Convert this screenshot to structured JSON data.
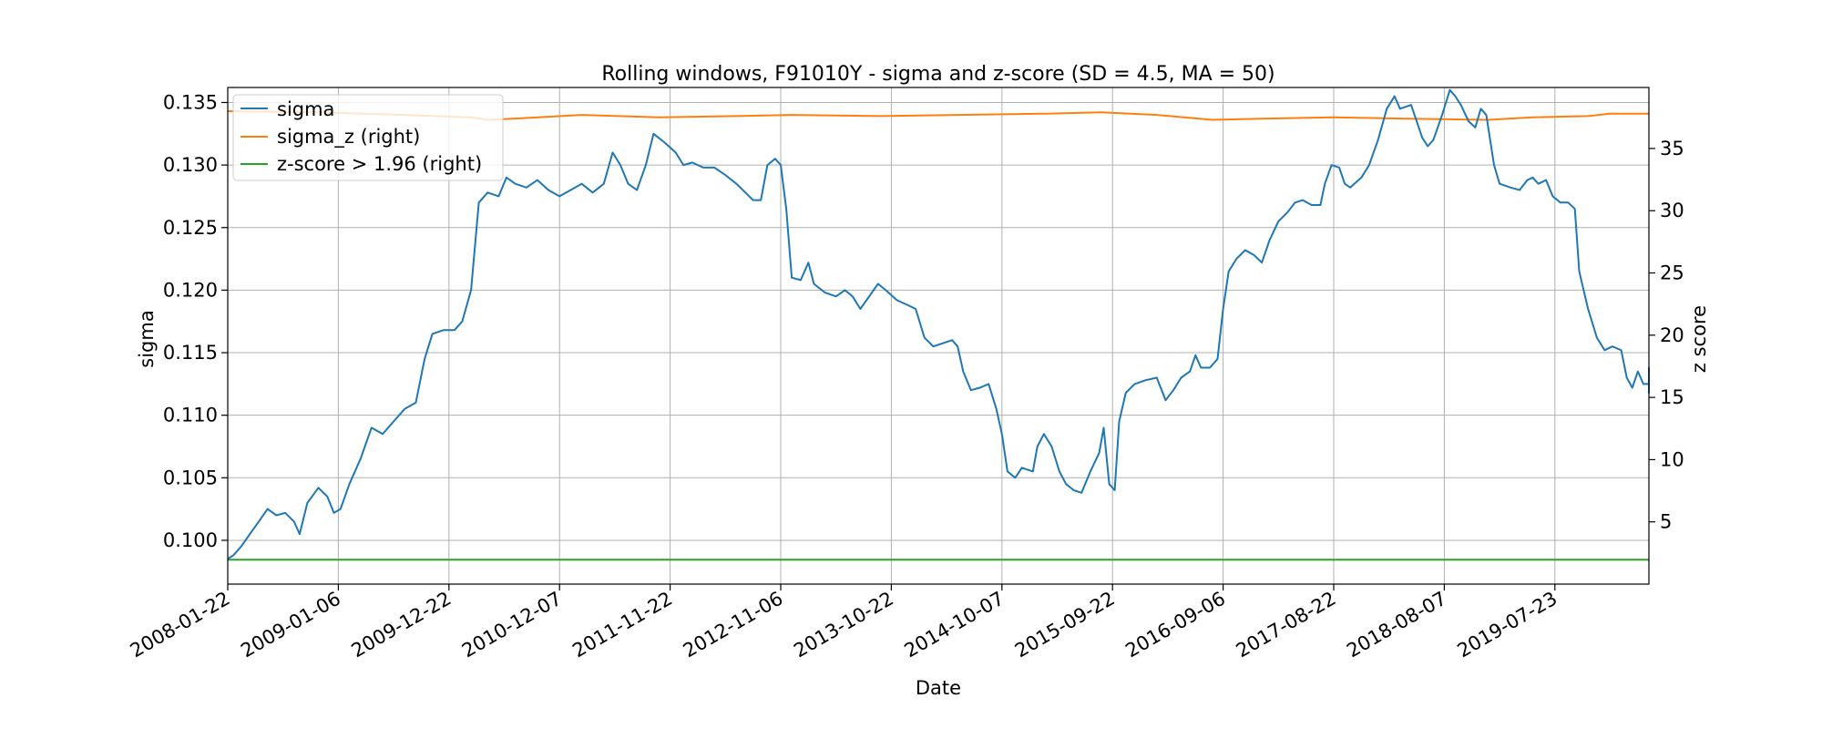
{
  "chart_data": {
    "type": "line",
    "title": "Rolling windows, F91010Y - sigma and z-score (SD = 4.5, MA = 50)",
    "xlabel": "Date",
    "ylabel": "sigma",
    "ylabel_right": "z score",
    "x_ticks": [
      "2008-01-22",
      "2009-01-06",
      "2009-12-22",
      "2010-12-07",
      "2011-11-22",
      "2012-11-06",
      "2013-10-22",
      "2014-10-07",
      "2015-09-22",
      "2016-09-06",
      "2017-08-22",
      "2018-08-07",
      "2019-07-23"
    ],
    "x_range_index": [
      0,
      12.85
    ],
    "y_left_range": [
      0.0965,
      0.1362
    ],
    "y_left_ticks": [
      "0.100",
      "0.105",
      "0.110",
      "0.115",
      "0.120",
      "0.125",
      "0.130",
      "0.135"
    ],
    "y_left_tick_values": [
      0.1,
      0.105,
      0.11,
      0.115,
      0.12,
      0.125,
      0.13,
      0.135
    ],
    "y_right_range": [
      0.0,
      39.9
    ],
    "y_right_ticks": [
      "5",
      "10",
      "15",
      "20",
      "25",
      "30",
      "35"
    ],
    "y_right_tick_values": [
      5,
      10,
      15,
      20,
      25,
      30,
      35
    ],
    "grid": true,
    "legend_position": "top-left",
    "series": [
      {
        "name": "sigma",
        "axis": "left",
        "color": "#1f77b4",
        "points": [
          [
            0.0,
            0.0985
          ],
          [
            0.05,
            0.0988
          ],
          [
            0.12,
            0.0995
          ],
          [
            0.2,
            0.1005
          ],
          [
            0.28,
            0.1015
          ],
          [
            0.36,
            0.1025
          ],
          [
            0.44,
            0.102
          ],
          [
            0.52,
            0.1022
          ],
          [
            0.6,
            0.1015
          ],
          [
            0.65,
            0.1005
          ],
          [
            0.72,
            0.103
          ],
          [
            0.82,
            0.1042
          ],
          [
            0.9,
            0.1035
          ],
          [
            0.96,
            0.1022
          ],
          [
            1.02,
            0.1025
          ],
          [
            1.1,
            0.1045
          ],
          [
            1.2,
            0.1065
          ],
          [
            1.3,
            0.109
          ],
          [
            1.4,
            0.1085
          ],
          [
            1.5,
            0.1095
          ],
          [
            1.6,
            0.1105
          ],
          [
            1.7,
            0.111
          ],
          [
            1.78,
            0.1145
          ],
          [
            1.85,
            0.1165
          ],
          [
            1.95,
            0.1168
          ],
          [
            2.05,
            0.1168
          ],
          [
            2.12,
            0.1175
          ],
          [
            2.2,
            0.12
          ],
          [
            2.27,
            0.127
          ],
          [
            2.35,
            0.1278
          ],
          [
            2.45,
            0.1275
          ],
          [
            2.52,
            0.129
          ],
          [
            2.6,
            0.1285
          ],
          [
            2.7,
            0.1282
          ],
          [
            2.8,
            0.1288
          ],
          [
            2.9,
            0.128
          ],
          [
            3.0,
            0.1275
          ],
          [
            3.1,
            0.128
          ],
          [
            3.2,
            0.1285
          ],
          [
            3.3,
            0.1278
          ],
          [
            3.4,
            0.1285
          ],
          [
            3.48,
            0.131
          ],
          [
            3.55,
            0.13
          ],
          [
            3.62,
            0.1285
          ],
          [
            3.7,
            0.128
          ],
          [
            3.78,
            0.13
          ],
          [
            3.85,
            0.1325
          ],
          [
            3.95,
            0.1318
          ],
          [
            4.05,
            0.131
          ],
          [
            4.12,
            0.13
          ],
          [
            4.2,
            0.1302
          ],
          [
            4.3,
            0.1298
          ],
          [
            4.4,
            0.1298
          ],
          [
            4.5,
            0.1292
          ],
          [
            4.6,
            0.1285
          ],
          [
            4.68,
            0.1278
          ],
          [
            4.75,
            0.1272
          ],
          [
            4.82,
            0.1272
          ],
          [
            4.88,
            0.13
          ],
          [
            4.95,
            0.1305
          ],
          [
            5.0,
            0.13
          ],
          [
            5.05,
            0.1265
          ],
          [
            5.1,
            0.121
          ],
          [
            5.18,
            0.1208
          ],
          [
            5.25,
            0.1222
          ],
          [
            5.3,
            0.1205
          ],
          [
            5.4,
            0.1198
          ],
          [
            5.5,
            0.1195
          ],
          [
            5.58,
            0.12
          ],
          [
            5.65,
            0.1195
          ],
          [
            5.72,
            0.1185
          ],
          [
            5.8,
            0.1195
          ],
          [
            5.88,
            0.1205
          ],
          [
            5.95,
            0.12
          ],
          [
            6.05,
            0.1192
          ],
          [
            6.15,
            0.1188
          ],
          [
            6.22,
            0.1185
          ],
          [
            6.3,
            0.1162
          ],
          [
            6.38,
            0.1155
          ],
          [
            6.48,
            0.1158
          ],
          [
            6.55,
            0.116
          ],
          [
            6.6,
            0.1155
          ],
          [
            6.65,
            0.1135
          ],
          [
            6.72,
            0.112
          ],
          [
            6.8,
            0.1122
          ],
          [
            6.88,
            0.1125
          ],
          [
            6.95,
            0.1105
          ],
          [
            7.0,
            0.1085
          ],
          [
            7.05,
            0.1055
          ],
          [
            7.12,
            0.105
          ],
          [
            7.18,
            0.1058
          ],
          [
            7.28,
            0.1055
          ],
          [
            7.32,
            0.1075
          ],
          [
            7.38,
            0.1085
          ],
          [
            7.45,
            0.1075
          ],
          [
            7.52,
            0.1055
          ],
          [
            7.58,
            0.1045
          ],
          [
            7.65,
            0.104
          ],
          [
            7.72,
            0.1038
          ],
          [
            7.8,
            0.1055
          ],
          [
            7.88,
            0.107
          ],
          [
            7.92,
            0.109
          ],
          [
            7.97,
            0.1045
          ],
          [
            8.02,
            0.104
          ],
          [
            8.06,
            0.1095
          ],
          [
            8.12,
            0.1118
          ],
          [
            8.2,
            0.1125
          ],
          [
            8.3,
            0.1128
          ],
          [
            8.4,
            0.113
          ],
          [
            8.48,
            0.1112
          ],
          [
            8.55,
            0.112
          ],
          [
            8.62,
            0.113
          ],
          [
            8.7,
            0.1135
          ],
          [
            8.75,
            0.1148
          ],
          [
            8.8,
            0.1138
          ],
          [
            8.88,
            0.1138
          ],
          [
            8.95,
            0.1145
          ],
          [
            9.0,
            0.1185
          ],
          [
            9.05,
            0.1215
          ],
          [
            9.12,
            0.1225
          ],
          [
            9.2,
            0.1232
          ],
          [
            9.28,
            0.1228
          ],
          [
            9.35,
            0.1222
          ],
          [
            9.42,
            0.124
          ],
          [
            9.5,
            0.1255
          ],
          [
            9.58,
            0.1262
          ],
          [
            9.65,
            0.127
          ],
          [
            9.72,
            0.1272
          ],
          [
            9.8,
            0.1268
          ],
          [
            9.88,
            0.1268
          ],
          [
            9.92,
            0.1285
          ],
          [
            9.98,
            0.13
          ],
          [
            10.05,
            0.1298
          ],
          [
            10.1,
            0.1285
          ],
          [
            10.15,
            0.1282
          ],
          [
            10.25,
            0.129
          ],
          [
            10.32,
            0.13
          ],
          [
            10.4,
            0.132
          ],
          [
            10.48,
            0.1345
          ],
          [
            10.55,
            0.1355
          ],
          [
            10.6,
            0.1345
          ],
          [
            10.7,
            0.1348
          ],
          [
            10.75,
            0.1335
          ],
          [
            10.8,
            0.1322
          ],
          [
            10.85,
            0.1315
          ],
          [
            10.9,
            0.132
          ],
          [
            10.98,
            0.134
          ],
          [
            11.05,
            0.136
          ],
          [
            11.1,
            0.1355
          ],
          [
            11.15,
            0.1348
          ],
          [
            11.22,
            0.1335
          ],
          [
            11.28,
            0.133
          ],
          [
            11.33,
            0.1345
          ],
          [
            11.38,
            0.134
          ],
          [
            11.45,
            0.13
          ],
          [
            11.5,
            0.1285
          ],
          [
            11.6,
            0.1282
          ],
          [
            11.68,
            0.128
          ],
          [
            11.75,
            0.1288
          ],
          [
            11.8,
            0.129
          ],
          [
            11.85,
            0.1285
          ],
          [
            11.92,
            0.1288
          ],
          [
            11.98,
            0.1275
          ],
          [
            12.05,
            0.127
          ],
          [
            12.12,
            0.127
          ],
          [
            12.18,
            0.1265
          ],
          [
            12.22,
            0.1215
          ],
          [
            12.3,
            0.1185
          ],
          [
            12.38,
            0.1162
          ],
          [
            12.45,
            0.1152
          ],
          [
            12.52,
            0.1155
          ],
          [
            12.6,
            0.1152
          ],
          [
            12.65,
            0.113
          ],
          [
            12.7,
            0.1122
          ],
          [
            12.75,
            0.1135
          ],
          [
            12.8,
            0.1125
          ],
          [
            12.85,
            0.1125
          ],
          [
            12.9,
            0.1118
          ],
          [
            12.95,
            0.1122
          ],
          [
            13.0,
            0.1132
          ],
          [
            13.05,
            0.1138
          ],
          [
            13.1,
            0.1136
          ],
          [
            13.17,
            0.1138
          ]
        ]
      },
      {
        "name": "sigma_z (right)",
        "axis": "right",
        "color": "#ff7f0e",
        "points": [
          [
            0.0,
            38.0
          ],
          [
            0.8,
            37.9
          ],
          [
            1.6,
            37.7
          ],
          [
            2.2,
            37.5
          ],
          [
            2.35,
            37.3
          ],
          [
            2.6,
            37.4
          ],
          [
            3.2,
            37.7
          ],
          [
            3.9,
            37.5
          ],
          [
            4.6,
            37.6
          ],
          [
            5.1,
            37.7
          ],
          [
            5.9,
            37.6
          ],
          [
            6.6,
            37.7
          ],
          [
            7.4,
            37.8
          ],
          [
            7.9,
            37.9
          ],
          [
            8.4,
            37.7
          ],
          [
            8.9,
            37.3
          ],
          [
            9.4,
            37.4
          ],
          [
            10.0,
            37.5
          ],
          [
            10.6,
            37.4
          ],
          [
            11.4,
            37.3
          ],
          [
            11.8,
            37.5
          ],
          [
            12.3,
            37.6
          ],
          [
            12.5,
            37.8
          ],
          [
            13.17,
            37.8
          ]
        ]
      },
      {
        "name": "z-score > 1.96 (right)",
        "axis": "right",
        "color": "#2ca02c",
        "points": [
          [
            0.0,
            1.96
          ],
          [
            13.17,
            1.96
          ]
        ]
      }
    ]
  }
}
